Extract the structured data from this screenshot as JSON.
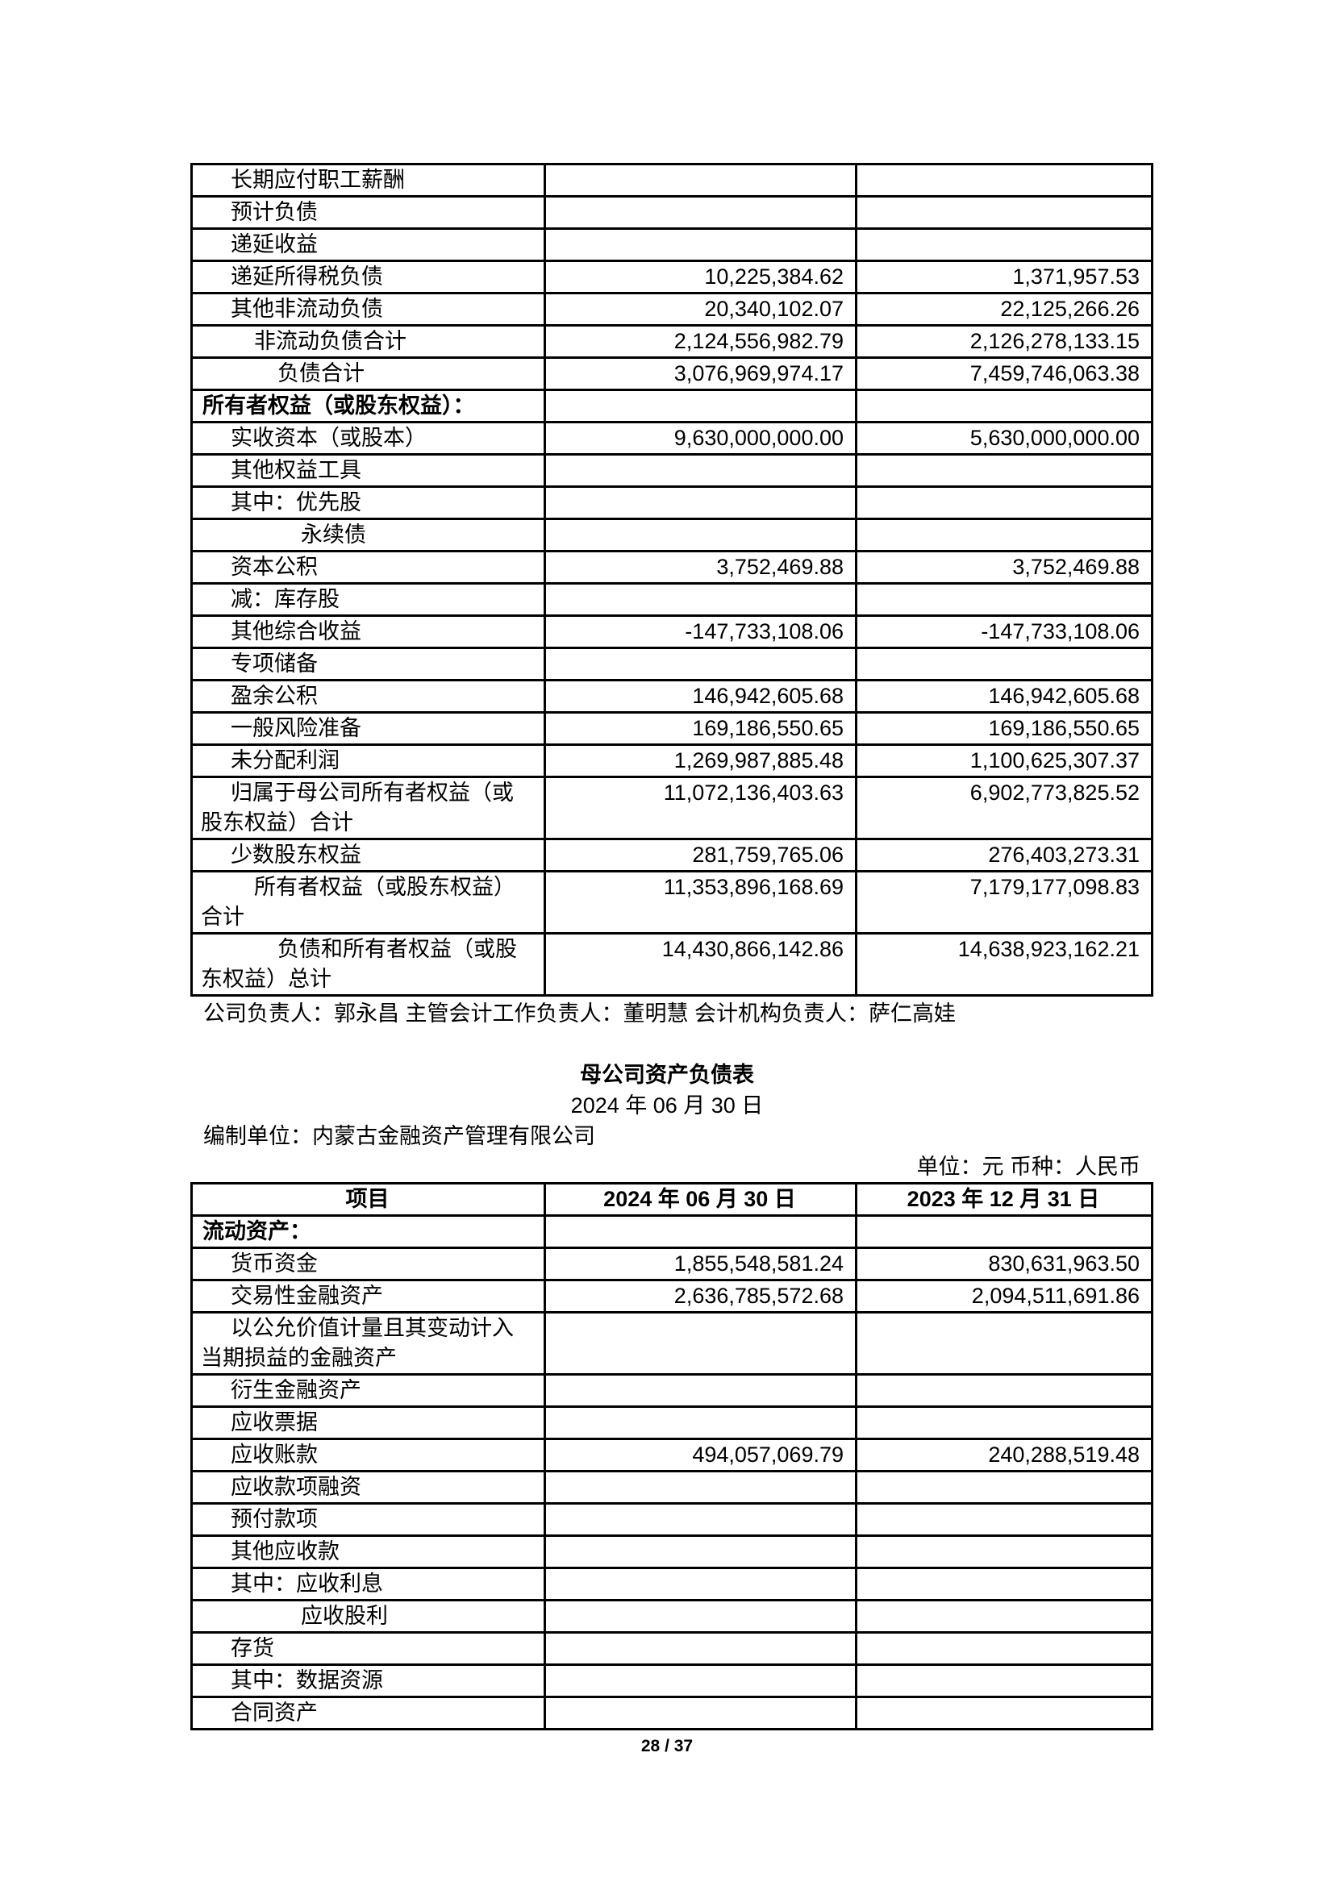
{
  "table1": {
    "rows": [
      {
        "label": "长期应付职工薪酬",
        "type": "item",
        "v1": "",
        "v2": ""
      },
      {
        "label": "预计负债",
        "type": "item",
        "v1": "",
        "v2": ""
      },
      {
        "label": "递延收益",
        "type": "item",
        "v1": "",
        "v2": ""
      },
      {
        "label": "递延所得税负债",
        "type": "item",
        "v1": "10,225,384.62",
        "v2": "1,371,957.53"
      },
      {
        "label": "其他非流动负债",
        "type": "item",
        "v1": "20,340,102.07",
        "v2": "22,125,266.26"
      },
      {
        "label": "非流动负债合计",
        "type": "subtotal",
        "v1": "2,124,556,982.79",
        "v2": "2,126,278,133.15"
      },
      {
        "label": "负债合计",
        "type": "total",
        "v1": "3,076,969,974.17",
        "v2": "7,459,746,063.38"
      },
      {
        "label": "所有者权益（或股东权益）：",
        "type": "section",
        "v1": "",
        "v2": ""
      },
      {
        "label": "实收资本（或股本）",
        "type": "item",
        "v1": "9,630,000,000.00",
        "v2": "5,630,000,000.00"
      },
      {
        "label": "其他权益工具",
        "type": "item",
        "v1": "",
        "v2": ""
      },
      {
        "label": "其中：优先股",
        "type": "item",
        "v1": "",
        "v2": ""
      },
      {
        "label": "永续债",
        "type": "sub-item",
        "v1": "",
        "v2": ""
      },
      {
        "label": "资本公积",
        "type": "item",
        "v1": "3,752,469.88",
        "v2": "3,752,469.88"
      },
      {
        "label": "减：库存股",
        "type": "item",
        "v1": "",
        "v2": ""
      },
      {
        "label": "其他综合收益",
        "type": "item",
        "v1": "-147,733,108.06",
        "v2": "-147,733,108.06"
      },
      {
        "label": "专项储备",
        "type": "item",
        "v1": "",
        "v2": ""
      },
      {
        "label": "盈余公积",
        "type": "item",
        "v1": "146,942,605.68",
        "v2": "146,942,605.68"
      },
      {
        "label": "一般风险准备",
        "type": "item",
        "v1": "169,186,550.65",
        "v2": "169,186,550.65"
      },
      {
        "label": "未分配利润",
        "type": "item",
        "v1": "1,269,987,885.48",
        "v2": "1,100,625,307.37"
      },
      {
        "label": "归属于母公司所有者权益（或股东权益）合计",
        "type": "item",
        "v1": "11,072,136,403.63",
        "v2": "6,902,773,825.52"
      },
      {
        "label": "少数股东权益",
        "type": "item",
        "v1": "281,759,765.06",
        "v2": "276,403,273.31"
      },
      {
        "label": "所有者权益（或股东权益）合计",
        "type": "subtotal",
        "v1": "11,353,896,168.69",
        "v2": "7,179,177,098.83"
      },
      {
        "label": "负债和所有者权益（或股东权益）总计",
        "type": "total",
        "v1": "14,430,866,142.86",
        "v2": "14,638,923,162.21"
      }
    ]
  },
  "signature": "公司负责人：郭永昌  主管会计工作负责人：董明慧  会计机构负责人：萨仁高娃",
  "parent": {
    "title": "母公司资产负债表",
    "date": "2024 年 06 月 30 日",
    "org": "编制单位：内蒙古金融资产管理有限公司",
    "unit": "单位：元    币种：人民币",
    "headers": [
      "项目",
      "2024 年 06 月 30 日",
      "2023 年 12 月 31 日"
    ],
    "rows": [
      {
        "label": "流动资产：",
        "type": "section",
        "v1": "",
        "v2": ""
      },
      {
        "label": "货币资金",
        "type": "item",
        "v1": "1,855,548,581.24",
        "v2": "830,631,963.50"
      },
      {
        "label": "交易性金融资产",
        "type": "item",
        "v1": "2,636,785,572.68",
        "v2": "2,094,511,691.86"
      },
      {
        "label": "以公允价值计量且其变动计入当期损益的金融资产",
        "type": "item",
        "v1": "",
        "v2": ""
      },
      {
        "label": "衍生金融资产",
        "type": "item",
        "v1": "",
        "v2": ""
      },
      {
        "label": "应收票据",
        "type": "item",
        "v1": "",
        "v2": ""
      },
      {
        "label": "应收账款",
        "type": "item",
        "v1": "494,057,069.79",
        "v2": "240,288,519.48"
      },
      {
        "label": "应收款项融资",
        "type": "item",
        "v1": "",
        "v2": ""
      },
      {
        "label": "预付款项",
        "type": "item",
        "v1": "",
        "v2": ""
      },
      {
        "label": "其他应收款",
        "type": "item",
        "v1": "",
        "v2": ""
      },
      {
        "label": "其中：应收利息",
        "type": "item",
        "v1": "",
        "v2": ""
      },
      {
        "label": "应收股利",
        "type": "sub-item",
        "v1": "",
        "v2": ""
      },
      {
        "label": "存货",
        "type": "item",
        "v1": "",
        "v2": ""
      },
      {
        "label": "其中：数据资源",
        "type": "item",
        "v1": "",
        "v2": ""
      },
      {
        "label": "合同资产",
        "type": "item",
        "v1": "",
        "v2": ""
      }
    ]
  },
  "page_number": "28 / 37"
}
